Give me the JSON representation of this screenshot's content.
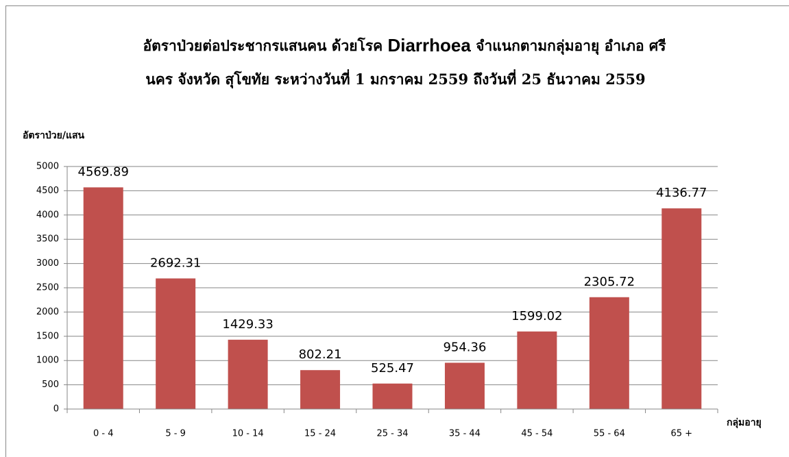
{
  "chart_data": {
    "type": "bar",
    "title": [
      [
        "อัตราป่วยต่อประชากรแสนคน  ด้วยโรค ",
        "Diarrhoea",
        "  จำแนกตามกลุ่มอายุ   อำเภอ  ศรี"
      ],
      [
        "นคร จังหวัด สุโขทัย  ระหว่างวันที่  1 มกราคม 2559  ถึงวันที่  25 ธันวาคม 2559"
      ]
    ],
    "y_label": "อัตราป่วย/แสน",
    "x_label": "กลุ่มอายุ",
    "categories": [
      "0 - 4",
      "5 - 9",
      "10 - 14",
      "15 - 24",
      "25 - 34",
      "35 - 44",
      "45 - 54",
      "55 - 64",
      "65 +"
    ],
    "values": [
      4569.89,
      2692.31,
      1429.33,
      802.21,
      525.47,
      954.36,
      1599.02,
      2305.72,
      4136.77
    ],
    "color": "#c0504d",
    "ylim": [
      0,
      5000
    ],
    "yticks": [
      0,
      500,
      1000,
      1500,
      2000,
      2500,
      3000,
      3500,
      4000,
      4500,
      5000
    ],
    "grid": true
  }
}
